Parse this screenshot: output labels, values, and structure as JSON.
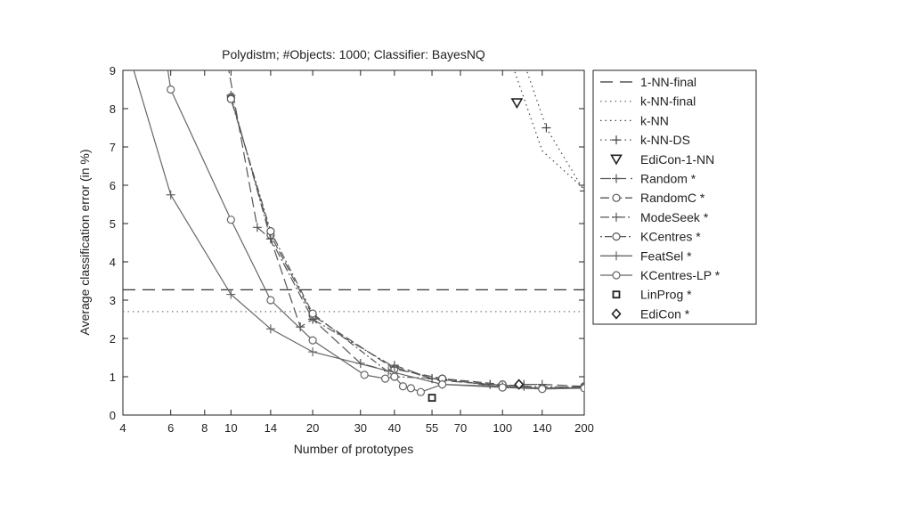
{
  "chart_data": {
    "type": "line",
    "title": "Polydistm;  #Objects: 1000;  Classifier: BayesNQ",
    "xlabel": "Number of prototypes",
    "ylabel": "Average classification error (in %)",
    "x_scale": "log",
    "xlim": [
      4,
      200
    ],
    "ylim": [
      0,
      9
    ],
    "x_ticks": [
      4,
      6,
      8,
      10,
      14,
      20,
      30,
      40,
      55,
      70,
      100,
      140,
      200
    ],
    "y_ticks": [
      0,
      1,
      2,
      3,
      4,
      5,
      6,
      7,
      8,
      9
    ],
    "grid": false,
    "legend_position": "outside-right",
    "series": [
      {
        "name": "1-NN-final",
        "style": "hline",
        "dash": "14,8",
        "color": "#333333",
        "y": 3.27
      },
      {
        "name": "k-NN-final",
        "style": "hline",
        "dash": "1.5,4",
        "color": "#777777",
        "y": 2.7
      },
      {
        "name": "k-NN",
        "dash": "1.5,4",
        "color": "#444444",
        "marker": "none",
        "x": [
          108,
          140,
          200
        ],
        "y": [
          9.2,
          6.9,
          5.9
        ]
      },
      {
        "name": "k-NN-DS",
        "dash": "1.5,4",
        "color": "#444444",
        "marker": "plus",
        "x": [
          120,
          145,
          200
        ],
        "y": [
          9.2,
          7.5,
          5.85
        ]
      },
      {
        "name": "EdiCon-1-NN",
        "dash": "none",
        "color": "#222222",
        "marker": "triangle-down",
        "markers_only": true,
        "x": [
          113
        ],
        "y": [
          8.15
        ]
      },
      {
        "name": "Random *",
        "dash": "12,5",
        "color": "#555555",
        "marker": "plus",
        "x": [
          9.7,
          12.5,
          14,
          18,
          20,
          30,
          38,
          40,
          55,
          60,
          90,
          100,
          120,
          140,
          200
        ],
        "y": [
          9.2,
          4.9,
          4.6,
          2.3,
          2.5,
          1.35,
          1.15,
          1.3,
          0.95,
          0.9,
          0.8,
          0.75,
          0.8,
          0.8,
          0.75
        ]
      },
      {
        "name": "RandomC *",
        "dash": "10,4",
        "color": "#555555",
        "marker": "circle",
        "x": [
          10,
          14,
          20,
          40,
          60,
          100,
          140,
          200
        ],
        "y": [
          8.3,
          4.7,
          2.6,
          1.2,
          0.95,
          0.8,
          0.7,
          0.75
        ]
      },
      {
        "name": "ModeSeek *",
        "dash": "10,3,2,3",
        "color": "#555555",
        "marker": "plus",
        "x": [
          10,
          14,
          20,
          40,
          55,
          90,
          120,
          200
        ],
        "y": [
          8.35,
          4.6,
          2.5,
          1.25,
          0.95,
          0.8,
          0.75,
          0.72
        ]
      },
      {
        "name": "KCentres *",
        "dash": "2,3,8,3",
        "color": "#555555",
        "marker": "circle",
        "x": [
          10,
          14,
          20,
          40,
          60,
          100,
          140,
          200
        ],
        "y": [
          8.25,
          4.8,
          2.65,
          1.0,
          0.95,
          0.72,
          0.7,
          0.72
        ]
      },
      {
        "name": "FeatSel *",
        "dash": "none",
        "color": "#666666",
        "marker": "plus",
        "x": [
          4.3,
          6,
          10,
          14,
          20,
          38,
          60,
          100,
          140,
          200
        ],
        "y": [
          9.2,
          5.75,
          3.15,
          2.25,
          1.65,
          1.15,
          0.8,
          0.75,
          0.7,
          0.7
        ]
      },
      {
        "name": "KCentres-LP *",
        "dash": "none",
        "color": "#666666",
        "marker": "circle",
        "x": [
          5.8,
          6,
          10,
          14,
          20,
          31,
          37,
          40,
          43,
          46,
          50,
          60,
          100,
          140,
          200
        ],
        "y": [
          9.2,
          8.5,
          5.1,
          3.0,
          1.95,
          1.05,
          0.95,
          1.0,
          0.75,
          0.7,
          0.6,
          0.8,
          0.72,
          0.68,
          0.7
        ]
      },
      {
        "name": "LinProg *",
        "dash": "none",
        "color": "#222222",
        "marker": "square",
        "markers_only": true,
        "x": [
          55
        ],
        "y": [
          0.45
        ]
      },
      {
        "name": "EdiCon *",
        "dash": "none",
        "color": "#222222",
        "marker": "diamond",
        "markers_only": true,
        "x": [
          115
        ],
        "y": [
          0.8
        ]
      }
    ]
  }
}
